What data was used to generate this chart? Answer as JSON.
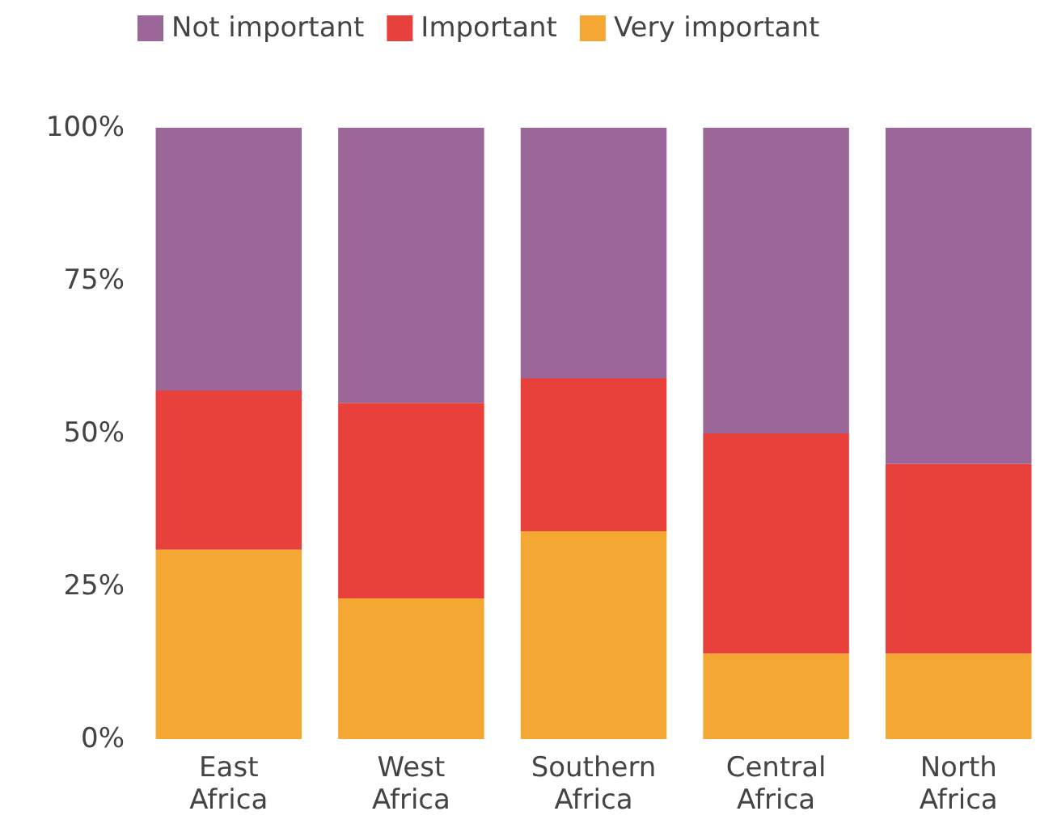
{
  "chart_data": {
    "type": "bar",
    "stacked": true,
    "categories": [
      "East\nAfrica",
      "West\nAfrica",
      "Southern\nAfrica",
      "Central\nAfrica",
      "North\nAfrica"
    ],
    "series": [
      {
        "name": "Very important",
        "color": "#f5a733",
        "values": [
          31,
          23,
          34,
          14,
          14
        ]
      },
      {
        "name": "Important",
        "color": "#e8403a",
        "values": [
          26,
          32,
          25,
          36,
          31
        ]
      },
      {
        "name": "Not important",
        "color": "#9b6799",
        "values": [
          43,
          45,
          41,
          50,
          55
        ]
      }
    ],
    "ylim": [
      0,
      100
    ],
    "yticks": [
      {
        "value": 0,
        "label": "0%"
      },
      {
        "value": 25,
        "label": "25%"
      },
      {
        "value": 50,
        "label": "50%"
      },
      {
        "value": 75,
        "label": "75%"
      },
      {
        "value": 100,
        "label": "100%"
      }
    ],
    "grid": false,
    "legend": "top left"
  }
}
